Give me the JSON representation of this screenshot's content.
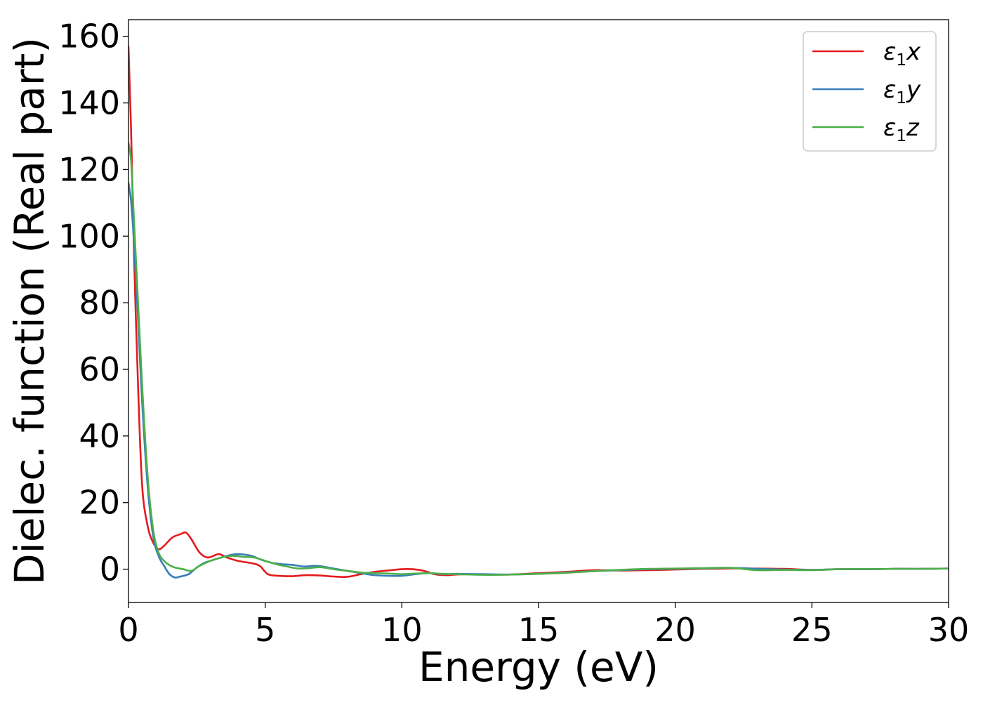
{
  "chart_data": {
    "type": "line",
    "xlabel": "Energy (eV)",
    "ylabel": "Dielec. function (Real part)",
    "xlim": [
      0,
      30
    ],
    "ylim": [
      -10,
      165
    ],
    "xticks": [
      0,
      5,
      10,
      15,
      20,
      25,
      30
    ],
    "yticks": [
      0,
      20,
      40,
      60,
      80,
      100,
      120,
      140,
      160
    ],
    "grid": false,
    "legend_position": "top-right",
    "series": [
      {
        "name": "ε₁x",
        "legend": {
          "main": "ε",
          "sub": "1",
          "suffix": "x"
        },
        "color": "#e41a1c",
        "x": [
          0,
          0.1,
          0.2,
          0.35,
          0.5,
          0.7,
          0.9,
          1.1,
          1.3,
          1.6,
          1.9,
          2.1,
          2.3,
          2.6,
          2.9,
          3.3,
          3.6,
          4.0,
          4.5,
          4.8,
          5.1,
          5.5,
          6.0,
          6.5,
          7.0,
          7.5,
          8.0,
          8.5,
          9.0,
          9.5,
          10.0,
          10.4,
          10.8,
          11.2,
          11.6,
          12.0,
          12.5,
          13.0,
          14.0,
          15.0,
          16.0,
          17.0,
          18.0,
          19.0,
          20.0,
          21.0,
          22.0,
          23.0,
          24.0,
          25.0,
          26.0,
          27.0,
          28.0,
          29.0,
          30.0
        ],
        "y": [
          157,
          130,
          95,
          55,
          25,
          13,
          8,
          6,
          7,
          9.5,
          10.5,
          11,
          9,
          5,
          3.5,
          4.5,
          3.5,
          2.5,
          1.8,
          1,
          -1.5,
          -2,
          -2.1,
          -1.8,
          -1.9,
          -2.2,
          -2.3,
          -1.5,
          -0.8,
          -0.4,
          0,
          0,
          -0.5,
          -1.5,
          -1.8,
          -1.6,
          -1.5,
          -1.6,
          -1.6,
          -1.2,
          -0.8,
          -0.3,
          -0.4,
          -0.3,
          -0.1,
          0.1,
          0.2,
          0.2,
          0.1,
          -0.2,
          0,
          0,
          0.1,
          0.1,
          0.2
        ]
      },
      {
        "name": "ε₁y",
        "legend": {
          "main": "ε",
          "sub": "1",
          "suffix": "y"
        },
        "color": "#377eb8",
        "x": [
          0,
          0.1,
          0.2,
          0.35,
          0.5,
          0.7,
          0.9,
          1.1,
          1.3,
          1.5,
          1.7,
          1.9,
          2.2,
          2.5,
          2.8,
          3.2,
          3.6,
          4.0,
          4.5,
          4.8,
          5.2,
          5.6,
          6.0,
          6.4,
          6.8,
          7.1,
          7.5,
          8.0,
          8.5,
          9.0,
          9.5,
          10.0,
          10.5,
          11.0,
          11.5,
          12.0,
          13.0,
          14.0,
          15.0,
          16.0,
          17.0,
          18.0,
          19.0,
          20.0,
          21.0,
          22.0,
          23.0,
          24.0,
          25.0,
          26.0,
          27.0,
          28.0,
          29.0,
          30.0
        ],
        "y": [
          116,
          110,
          98,
          75,
          50,
          25,
          10,
          4,
          1,
          -1.5,
          -2.5,
          -2.2,
          -1.5,
          0.5,
          2,
          3,
          4,
          4.5,
          4,
          3,
          2,
          1.5,
          1.3,
          0.8,
          1,
          0.8,
          0.2,
          -0.5,
          -1.2,
          -1.8,
          -2.0,
          -2.0,
          -1.5,
          -1.2,
          -1.5,
          -1.4,
          -1.5,
          -1.6,
          -1.4,
          -1,
          -0.6,
          -0.3,
          0,
          0.1,
          0.2,
          0.4,
          0.1,
          -0.1,
          -0.2,
          0,
          0,
          0.1,
          0.1,
          0.2
        ]
      },
      {
        "name": "ε₁z",
        "legend": {
          "main": "ε",
          "sub": "1",
          "suffix": "z"
        },
        "color": "#4daf4a",
        "x": [
          0,
          0.1,
          0.2,
          0.35,
          0.5,
          0.7,
          0.9,
          1.1,
          1.3,
          1.5,
          1.7,
          2.0,
          2.3,
          2.6,
          3.0,
          3.4,
          3.8,
          4.2,
          4.6,
          5.0,
          5.4,
          5.8,
          6.2,
          6.6,
          7.0,
          7.5,
          8.0,
          8.5,
          9.0,
          9.5,
          10.0,
          10.5,
          11.0,
          11.5,
          12.0,
          13.0,
          14.0,
          15.0,
          16.0,
          17.0,
          18.0,
          19.0,
          20.0,
          21.0,
          22.0,
          23.0,
          24.0,
          25.0,
          26.0,
          27.0,
          28.0,
          29.0,
          30.0
        ],
        "y": [
          128,
          122,
          105,
          80,
          55,
          28,
          12,
          5,
          2.5,
          1.2,
          0.5,
          0,
          -0.5,
          1,
          2.5,
          3.5,
          4,
          3.7,
          3.5,
          2.5,
          1.5,
          0.8,
          0.2,
          0.3,
          0.6,
          0,
          -0.5,
          -1,
          -1.2,
          -1.3,
          -1.5,
          -1.3,
          -1.2,
          -1.4,
          -1.5,
          -1.7,
          -1.6,
          -1.4,
          -1.1,
          -0.6,
          -0.2,
          0.1,
          0.2,
          0.3,
          0.4,
          -0.3,
          -0.2,
          -0.3,
          0,
          0,
          0.1,
          0.1,
          0.2
        ]
      }
    ]
  }
}
